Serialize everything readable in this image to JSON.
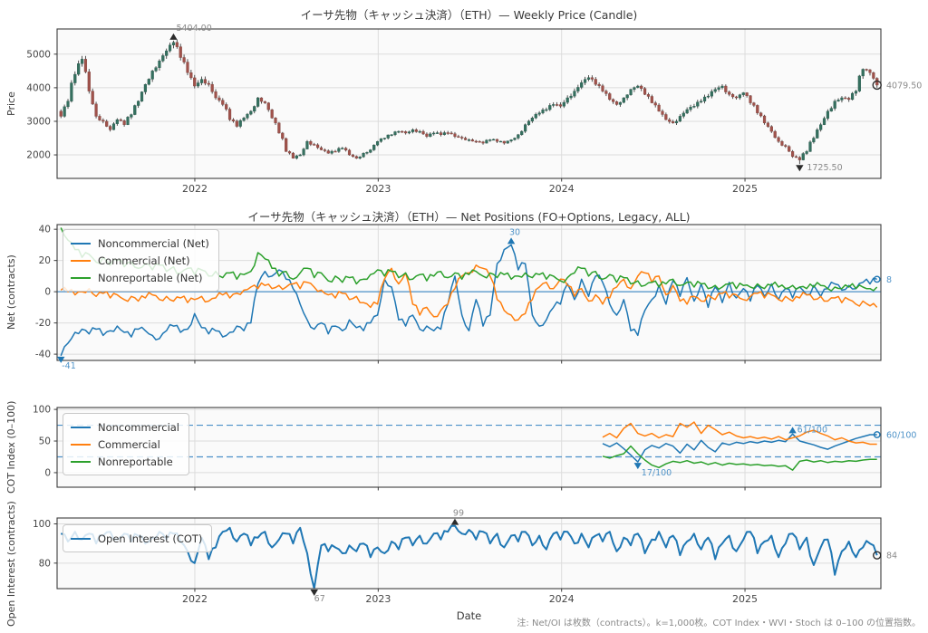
{
  "page": {
    "footer_note": "注: Net/OI は枚数（contracts）。k=1,000枚。COT Index・WVI・Stoch は 0–100 の位置指数。"
  },
  "colors": {
    "noncommercial": "#1f77b4",
    "commercial": "#ff7f0e",
    "nonreportable": "#2ca02c",
    "oi": "#1f77b4",
    "candle_up": "#35705f",
    "candle_up_edge": "#27584c",
    "candle_down": "#a0524b",
    "candle_down_edge": "#7e423c",
    "wick": "#3f3f3f",
    "grid": "#dcdcdc",
    "spine": "#3c3c3c",
    "tick_label": "#454545",
    "plot_bg": "#fafafa",
    "zero_line": "#4a90c8",
    "threshold": "#4a90c8",
    "ann_gray": "#8a8a8a",
    "ann_blue": "#4f93c8",
    "marker_dark": "#2b2b2b"
  },
  "x_axis": {
    "label": "Date",
    "xlim": [
      2021.249,
      2025.741
    ],
    "tick_years": [
      2022,
      2023,
      2024,
      2025
    ],
    "data_start": 2021.27,
    "step_years": 0.038362,
    "n_points": 117
  },
  "chart_data": [
    {
      "type": "candlestick",
      "title": "イーサ先物（キャッシュ決済）（ETH）— Weekly Price (Candle)",
      "ylabel": "Price",
      "ylim": [
        1300,
        5750
      ],
      "yticks": [
        2000,
        3000,
        4000,
        5000
      ],
      "show_xticklabels": true,
      "first_open": 3300,
      "closes": [
        3150,
        3600,
        4400,
        4850,
        3900,
        3150,
        3000,
        2750,
        3050,
        2900,
        3200,
        3600,
        4100,
        4500,
        4800,
        5100,
        5350,
        4900,
        4450,
        4050,
        4250,
        4100,
        3700,
        3500,
        3050,
        2850,
        3100,
        3300,
        3700,
        3550,
        3100,
        2650,
        2100,
        1900,
        2000,
        2400,
        2300,
        2150,
        2050,
        2100,
        2200,
        2000,
        1900,
        2050,
        2150,
        2400,
        2500,
        2600,
        2700,
        2650,
        2750,
        2700,
        2550,
        2650,
        2600,
        2650,
        2550,
        2500,
        2450,
        2400,
        2350,
        2450,
        2400,
        2350,
        2450,
        2600,
        2900,
        3100,
        3250,
        3350,
        3500,
        3450,
        3700,
        3900,
        4150,
        4300,
        4100,
        3900,
        3650,
        3500,
        3700,
        3950,
        4050,
        3800,
        3550,
        3300,
        3050,
        2950,
        3150,
        3350,
        3450,
        3600,
        3750,
        3950,
        4050,
        3800,
        3700,
        3850,
        3550,
        3250,
        2950,
        2700,
        2400,
        2250,
        1950,
        1850,
        2100,
        2500,
        2900,
        3300,
        3600,
        3700,
        3650,
        3900,
        4550,
        4450,
        4079.5
      ],
      "annotations": {
        "max": {
          "index": 16,
          "value": 5404,
          "label": "5404.00"
        },
        "min": {
          "index": 105,
          "value": 1725.5,
          "label": "1725.50"
        },
        "last": {
          "value": 4079.5,
          "label": "4079.50"
        }
      }
    },
    {
      "type": "line",
      "title": "イーサ先物（キャッシュ決済）（ETH）— Net Positions (FO+Options, Legacy, ALL)",
      "ylabel": "Net (contracts)",
      "ylim": [
        -44,
        43
      ],
      "yticks": [
        -40,
        -20,
        0,
        20,
        40
      ],
      "zero_line": 0,
      "series": [
        {
          "name": "Noncommercial (Net)",
          "color_key": "noncommercial",
          "values": [
            -41,
            -33,
            -26,
            -24,
            -27,
            -24,
            -28,
            -25,
            -22,
            -26,
            -29,
            -24,
            -25,
            -28,
            -30,
            -25,
            -22,
            -26,
            -24,
            -14,
            -23,
            -27,
            -25,
            -29,
            -26,
            -22,
            -25,
            -20,
            5,
            13,
            10,
            14,
            8,
            2,
            -8,
            -18,
            -24,
            -20,
            -27,
            -22,
            -25,
            -18,
            -23,
            -25,
            -20,
            -15,
            8,
            3,
            -18,
            -22,
            -15,
            -24,
            -22,
            -25,
            -24,
            -8,
            10,
            -15,
            -25,
            -5,
            -22,
            -15,
            18,
            27,
            30,
            14,
            18,
            -15,
            -22,
            -18,
            -10,
            -8,
            5,
            -5,
            8,
            -3,
            10,
            6,
            -8,
            -15,
            -5,
            -25,
            -28,
            -12,
            -5,
            4,
            -8,
            7,
            -3,
            9,
            -6,
            5,
            -10,
            3,
            -7,
            6,
            -4,
            2,
            -6,
            4,
            -3,
            5,
            -5,
            2,
            -4,
            3,
            -2,
            4,
            -3,
            2,
            5,
            1,
            4,
            2,
            6,
            5,
            8
          ]
        },
        {
          "name": "Commercial (Net)",
          "color_key": "commercial",
          "values": [
            1,
            0,
            -2,
            0,
            2,
            -3,
            -1,
            -4,
            -2,
            -5,
            -3,
            -6,
            -4,
            -2,
            -5,
            -3,
            -6,
            -4,
            -7,
            -5,
            -3,
            -6,
            -4,
            -2,
            -4,
            -1,
            1,
            3,
            2,
            4,
            2,
            4,
            3,
            5,
            2,
            6,
            3,
            1,
            -2,
            -4,
            -1,
            -5,
            -3,
            -7,
            -10,
            -8,
            8,
            15,
            5,
            12,
            -8,
            -15,
            -10,
            -16,
            -12,
            -8,
            2,
            10,
            12,
            17,
            15,
            10,
            -5,
            -12,
            -15,
            -18,
            -14,
            -5,
            3,
            6,
            2,
            8,
            4,
            -3,
            2,
            -6,
            -2,
            -8,
            -4,
            3,
            8,
            2,
            10,
            12,
            6,
            10,
            -2,
            4,
            -6,
            -8,
            -3,
            -6,
            -2,
            -5,
            -1,
            -4,
            -2,
            -5,
            -3,
            -1,
            -4,
            -2,
            -5,
            -3,
            -6,
            -4,
            -2,
            -5,
            -3,
            -6,
            -4,
            -7,
            -5,
            -8,
            -6,
            -9,
            -10
          ]
        },
        {
          "name": "Nonreportable (Net)",
          "color_key": "nonreportable",
          "values": [
            41,
            33,
            27,
            22,
            24,
            19,
            22,
            17,
            20,
            16,
            19,
            15,
            18,
            14,
            17,
            13,
            16,
            12,
            15,
            11,
            14,
            10,
            13,
            9,
            12,
            8,
            11,
            13,
            25,
            21,
            15,
            10,
            13,
            8,
            12,
            15,
            9,
            12,
            7,
            10,
            6,
            9,
            5,
            8,
            11,
            14,
            10,
            13,
            9,
            12,
            8,
            11,
            7,
            10,
            13,
            9,
            12,
            8,
            11,
            13,
            10,
            12,
            9,
            11,
            8,
            10,
            12,
            9,
            11,
            8,
            10,
            7,
            9,
            12,
            15,
            10,
            13,
            8,
            11,
            6,
            9,
            5,
            7,
            4,
            6,
            3,
            5,
            8,
            4,
            6,
            3,
            5,
            2,
            4,
            3,
            5,
            2,
            4,
            3,
            5,
            2,
            4,
            3,
            2,
            4,
            3,
            2,
            3,
            4,
            2,
            3,
            2,
            3,
            2,
            3,
            2,
            3
          ]
        }
      ],
      "annotations": {
        "min": {
          "index": 0,
          "value": -41,
          "label": "-41"
        },
        "max": {
          "index": 64,
          "value": 30,
          "label": "30"
        },
        "last": {
          "value": 8,
          "label": "8"
        }
      }
    },
    {
      "type": "line",
      "ylabel": "COT Index (0–100)",
      "ylim": [
        -23,
        103
      ],
      "yticks": [
        0,
        50,
        100
      ],
      "thresholds": [
        25,
        75
      ],
      "start_index": 77,
      "series": [
        {
          "name": "Noncommercial",
          "color_key": "noncommercial",
          "values": [
            46,
            41,
            47,
            38,
            28,
            17,
            36,
            43,
            39,
            46,
            42,
            31,
            45,
            36,
            51,
            40,
            33,
            47,
            44,
            48,
            46,
            49,
            47,
            50,
            48,
            51,
            49,
            61,
            50,
            47,
            44,
            40,
            37,
            42,
            46,
            50,
            54,
            57,
            60,
            60
          ]
        },
        {
          "name": "Commercial",
          "color_key": "commercial",
          "values": [
            56,
            62,
            55,
            70,
            78,
            62,
            58,
            62,
            55,
            60,
            57,
            78,
            72,
            80,
            62,
            75,
            68,
            60,
            64,
            58,
            55,
            57,
            54,
            56,
            53,
            57,
            52,
            55,
            58,
            64,
            67,
            62,
            58,
            52,
            55,
            50,
            47,
            48,
            45,
            45
          ]
        },
        {
          "name": "Nonreportable",
          "color_key": "nonreportable",
          "values": [
            26,
            23,
            27,
            30,
            42,
            30,
            20,
            12,
            8,
            14,
            18,
            16,
            19,
            15,
            17,
            13,
            16,
            12,
            15,
            13,
            14,
            12,
            13,
            11,
            12,
            10,
            11,
            4,
            18,
            20,
            17,
            19,
            16,
            18,
            17,
            19,
            18,
            20,
            21,
            21
          ]
        }
      ],
      "annotations": {
        "min": {
          "index": 82,
          "value": 17,
          "label": "17/100"
        },
        "max": {
          "index": 104,
          "value": 61,
          "label": "61/100"
        },
        "last": {
          "value": 60,
          "label": "60/100"
        }
      }
    },
    {
      "type": "line",
      "ylabel": "Open Interest (contracts)",
      "ylim": [
        67,
        103
      ],
      "yticks": [
        80,
        100
      ],
      "show_xticklabels": true,
      "xlabel": "Date",
      "series": [
        {
          "name": "Open Interest (COT)",
          "color_key": "oi",
          "values": [
            95,
            91,
            96,
            92,
            95,
            90,
            94,
            96,
            92,
            95,
            91,
            94,
            90,
            93,
            96,
            92,
            95,
            91,
            86,
            80,
            93,
            82,
            88,
            96,
            98,
            91,
            95,
            89,
            93,
            96,
            88,
            92,
            95,
            90,
            98,
            85,
            67,
            89,
            86,
            88,
            85,
            89,
            86,
            90,
            83,
            88,
            85,
            91,
            87,
            93,
            89,
            94,
            90,
            95,
            92,
            96,
            99,
            95,
            97,
            92,
            96,
            90,
            95,
            88,
            94,
            91,
            96,
            89,
            94,
            87,
            95,
            92,
            96,
            90,
            95,
            88,
            94,
            91,
            96,
            86,
            93,
            89,
            95,
            85,
            92,
            96,
            88,
            94,
            84,
            91,
            95,
            87,
            93,
            82,
            90,
            94,
            86,
            92,
            96,
            85,
            91,
            94,
            83,
            90,
            95,
            87,
            93,
            79,
            88,
            92,
            74,
            86,
            91,
            83,
            88,
            90,
            84
          ]
        }
      ],
      "annotations": {
        "min": {
          "index": 36,
          "value": 67,
          "label": "67"
        },
        "max": {
          "index": 56,
          "value": 99,
          "label": "99"
        },
        "last": {
          "value": 84,
          "label": "84"
        }
      }
    }
  ]
}
